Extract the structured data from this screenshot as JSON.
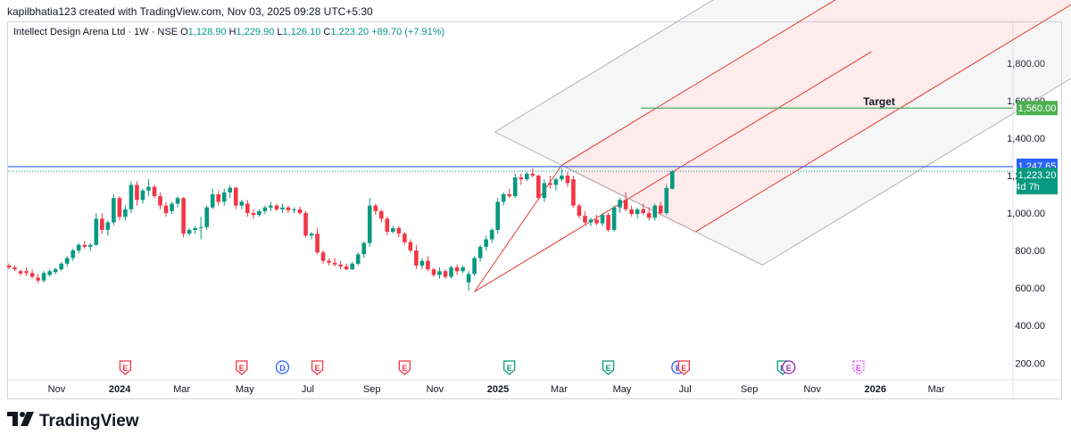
{
  "header": {
    "text": "kapilbhatia123 created with TradingView.com, Nov 03, 2025 09:28 UTC+5:30"
  },
  "legend": {
    "symbol": "Intellect Design Arena Ltd · 1W · NSE",
    "open_label": "O",
    "open": "1,128.90",
    "high_label": "H",
    "high": "1,229.90",
    "low_label": "L",
    "low": "1,126.10",
    "close_label": "C",
    "close": "1,223.20",
    "change": "+89.70 (+7.91%)"
  },
  "brand": {
    "name": "TradingView"
  },
  "colors": {
    "up": "#089981",
    "down": "#f23645",
    "hline": "#2962ff",
    "target": "#4caf50",
    "pitchfork": "#e53935",
    "outer": "#b2b5be"
  },
  "chart_data": {
    "type": "candlestick",
    "symbol": "Intellect Design Arena Ltd",
    "interval": "1W",
    "exchange": "NSE",
    "y_ticks": [
      200,
      400,
      600,
      800,
      1000,
      1200,
      1400,
      1600,
      1800
    ],
    "y_tick_labels": [
      "200.00",
      "400.00",
      "600.00",
      "800.00",
      "1,000.00",
      "1,200.00",
      "1,400.00",
      "1,600.00",
      "1,800.00"
    ],
    "ylim": [
      130,
      1970
    ],
    "x_labels": [
      "Nov",
      "2024",
      "Mar",
      "May",
      "Jul",
      "Sep",
      "Nov",
      "2025",
      "Mar",
      "May",
      "Jul",
      "Sep",
      "Nov",
      "2026",
      "Mar"
    ],
    "x_label_dates": [
      "2023-11-01",
      "2024-01-01",
      "2024-03-01",
      "2024-05-01",
      "2024-07-01",
      "2024-09-01",
      "2024-11-01",
      "2025-01-01",
      "2025-03-01",
      "2025-05-01",
      "2025-07-01",
      "2025-09-01",
      "2025-11-01",
      "2026-01-01",
      "2026-03-01"
    ],
    "xlim": [
      "2023-09-15",
      "2026-05-15"
    ],
    "candles": [
      {
        "o": 720,
        "h": 730,
        "l": 700,
        "c": 710
      },
      {
        "o": 710,
        "h": 720,
        "l": 690,
        "c": 700
      },
      {
        "o": 690,
        "h": 700,
        "l": 665,
        "c": 678
      },
      {
        "o": 690,
        "h": 710,
        "l": 665,
        "c": 680
      },
      {
        "o": 680,
        "h": 700,
        "l": 650,
        "c": 660
      },
      {
        "o": 655,
        "h": 675,
        "l": 625,
        "c": 640
      },
      {
        "o": 640,
        "h": 690,
        "l": 630,
        "c": 680
      },
      {
        "o": 670,
        "h": 700,
        "l": 660,
        "c": 690
      },
      {
        "o": 685,
        "h": 710,
        "l": 672,
        "c": 700
      },
      {
        "o": 700,
        "h": 740,
        "l": 690,
        "c": 730
      },
      {
        "o": 730,
        "h": 770,
        "l": 715,
        "c": 760
      },
      {
        "o": 760,
        "h": 810,
        "l": 745,
        "c": 800
      },
      {
        "o": 800,
        "h": 840,
        "l": 785,
        "c": 830
      },
      {
        "o": 830,
        "h": 850,
        "l": 810,
        "c": 820
      },
      {
        "o": 820,
        "h": 840,
        "l": 800,
        "c": 830
      },
      {
        "o": 830,
        "h": 1000,
        "l": 825,
        "c": 970
      },
      {
        "o": 970,
        "h": 1000,
        "l": 890,
        "c": 910
      },
      {
        "o": 910,
        "h": 960,
        "l": 880,
        "c": 950
      },
      {
        "o": 950,
        "h": 1100,
        "l": 935,
        "c": 1080
      },
      {
        "o": 1080,
        "h": 1090,
        "l": 960,
        "c": 980
      },
      {
        "o": 980,
        "h": 1040,
        "l": 960,
        "c": 1020
      },
      {
        "o": 1020,
        "h": 1170,
        "l": 1000,
        "c": 1150
      },
      {
        "o": 1150,
        "h": 1170,
        "l": 1040,
        "c": 1070
      },
      {
        "o": 1070,
        "h": 1130,
        "l": 1050,
        "c": 1120
      },
      {
        "o": 1120,
        "h": 1180,
        "l": 1090,
        "c": 1140
      },
      {
        "o": 1140,
        "h": 1150,
        "l": 1080,
        "c": 1090
      },
      {
        "o": 1090,
        "h": 1110,
        "l": 1020,
        "c": 1040
      },
      {
        "o": 1040,
        "h": 1060,
        "l": 980,
        "c": 1000
      },
      {
        "o": 1010,
        "h": 1060,
        "l": 995,
        "c": 1050
      },
      {
        "o": 1050,
        "h": 1090,
        "l": 1030,
        "c": 1080
      },
      {
        "o": 1080,
        "h": 1085,
        "l": 870,
        "c": 890
      },
      {
        "o": 890,
        "h": 920,
        "l": 880,
        "c": 910
      },
      {
        "o": 910,
        "h": 930,
        "l": 890,
        "c": 920
      },
      {
        "o": 920,
        "h": 980,
        "l": 860,
        "c": 925
      },
      {
        "o": 925,
        "h": 1040,
        "l": 910,
        "c": 1030
      },
      {
        "o": 1030,
        "h": 1130,
        "l": 1020,
        "c": 1100
      },
      {
        "o": 1100,
        "h": 1120,
        "l": 1040,
        "c": 1060
      },
      {
        "o": 1060,
        "h": 1130,
        "l": 1040,
        "c": 1110
      },
      {
        "o": 1110,
        "h": 1150,
        "l": 1080,
        "c": 1135
      },
      {
        "o": 1135,
        "h": 1140,
        "l": 1020,
        "c": 1040
      },
      {
        "o": 1040,
        "h": 1070,
        "l": 1020,
        "c": 1060
      },
      {
        "o": 1050,
        "h": 1070,
        "l": 980,
        "c": 1000
      },
      {
        "o": 1000,
        "h": 1020,
        "l": 970,
        "c": 990
      },
      {
        "o": 990,
        "h": 1020,
        "l": 980,
        "c": 1010
      },
      {
        "o": 1010,
        "h": 1040,
        "l": 995,
        "c": 1030
      },
      {
        "o": 1030,
        "h": 1060,
        "l": 1010,
        "c": 1040
      },
      {
        "o": 1040,
        "h": 1050,
        "l": 1010,
        "c": 1020
      },
      {
        "o": 1020,
        "h": 1050,
        "l": 1000,
        "c": 1030
      },
      {
        "o": 1030,
        "h": 1040,
        "l": 1000,
        "c": 1015
      },
      {
        "o": 1015,
        "h": 1030,
        "l": 1000,
        "c": 1020
      },
      {
        "o": 1020,
        "h": 1035,
        "l": 990,
        "c": 1000
      },
      {
        "o": 1000,
        "h": 1010,
        "l": 870,
        "c": 880
      },
      {
        "o": 880,
        "h": 900,
        "l": 860,
        "c": 890
      },
      {
        "o": 890,
        "h": 920,
        "l": 780,
        "c": 790
      },
      {
        "o": 790,
        "h": 800,
        "l": 730,
        "c": 745
      },
      {
        "o": 745,
        "h": 760,
        "l": 720,
        "c": 735
      },
      {
        "o": 735,
        "h": 760,
        "l": 715,
        "c": 725
      },
      {
        "o": 725,
        "h": 745,
        "l": 700,
        "c": 715
      },
      {
        "o": 715,
        "h": 730,
        "l": 695,
        "c": 700
      },
      {
        "o": 700,
        "h": 740,
        "l": 695,
        "c": 730
      },
      {
        "o": 730,
        "h": 790,
        "l": 720,
        "c": 780
      },
      {
        "o": 780,
        "h": 850,
        "l": 760,
        "c": 840
      },
      {
        "o": 840,
        "h": 1080,
        "l": 820,
        "c": 1040
      },
      {
        "o": 1040,
        "h": 1050,
        "l": 990,
        "c": 1010
      },
      {
        "o": 1010,
        "h": 1020,
        "l": 950,
        "c": 970
      },
      {
        "o": 970,
        "h": 980,
        "l": 880,
        "c": 900
      },
      {
        "o": 900,
        "h": 930,
        "l": 890,
        "c": 920
      },
      {
        "o": 920,
        "h": 930,
        "l": 870,
        "c": 890
      },
      {
        "o": 890,
        "h": 900,
        "l": 830,
        "c": 845
      },
      {
        "o": 845,
        "h": 860,
        "l": 790,
        "c": 800
      },
      {
        "o": 800,
        "h": 830,
        "l": 700,
        "c": 720
      },
      {
        "o": 720,
        "h": 760,
        "l": 700,
        "c": 745
      },
      {
        "o": 745,
        "h": 770,
        "l": 690,
        "c": 700
      },
      {
        "o": 700,
        "h": 710,
        "l": 660,
        "c": 670
      },
      {
        "o": 670,
        "h": 710,
        "l": 650,
        "c": 690
      },
      {
        "o": 690,
        "h": 700,
        "l": 650,
        "c": 660
      },
      {
        "o": 660,
        "h": 720,
        "l": 650,
        "c": 710
      },
      {
        "o": 710,
        "h": 725,
        "l": 670,
        "c": 690
      },
      {
        "o": 690,
        "h": 720,
        "l": 680,
        "c": 710
      },
      {
        "o": 630,
        "h": 690,
        "l": 585,
        "c": 675
      },
      {
        "o": 675,
        "h": 770,
        "l": 665,
        "c": 760
      },
      {
        "o": 760,
        "h": 830,
        "l": 740,
        "c": 820
      },
      {
        "o": 820,
        "h": 880,
        "l": 800,
        "c": 860
      },
      {
        "o": 860,
        "h": 920,
        "l": 840,
        "c": 910
      },
      {
        "o": 910,
        "h": 1080,
        "l": 890,
        "c": 1060
      },
      {
        "o": 1060,
        "h": 1110,
        "l": 1040,
        "c": 1100
      },
      {
        "o": 1100,
        "h": 1130,
        "l": 1080,
        "c": 1090
      },
      {
        "o": 1090,
        "h": 1210,
        "l": 1080,
        "c": 1190
      },
      {
        "o": 1190,
        "h": 1210,
        "l": 1150,
        "c": 1180
      },
      {
        "o": 1180,
        "h": 1220,
        "l": 1170,
        "c": 1210
      },
      {
        "o": 1210,
        "h": 1240,
        "l": 1190,
        "c": 1200
      },
      {
        "o": 1200,
        "h": 1205,
        "l": 1070,
        "c": 1080
      },
      {
        "o": 1080,
        "h": 1180,
        "l": 1060,
        "c": 1160
      },
      {
        "o": 1160,
        "h": 1200,
        "l": 1130,
        "c": 1150
      },
      {
        "o": 1150,
        "h": 1190,
        "l": 1120,
        "c": 1180
      },
      {
        "o": 1180,
        "h": 1240,
        "l": 1170,
        "c": 1200
      },
      {
        "o": 1200,
        "h": 1220,
        "l": 1140,
        "c": 1160
      },
      {
        "o": 1180,
        "h": 1200,
        "l": 1030,
        "c": 1040
      },
      {
        "o": 1040,
        "h": 1050,
        "l": 970,
        "c": 985
      },
      {
        "o": 985,
        "h": 1010,
        "l": 940,
        "c": 950
      },
      {
        "o": 950,
        "h": 975,
        "l": 930,
        "c": 965
      },
      {
        "o": 965,
        "h": 990,
        "l": 935,
        "c": 945
      },
      {
        "o": 945,
        "h": 1000,
        "l": 930,
        "c": 990
      },
      {
        "o": 990,
        "h": 1000,
        "l": 900,
        "c": 910
      },
      {
        "o": 910,
        "h": 1040,
        "l": 900,
        "c": 1030
      },
      {
        "o": 1030,
        "h": 1080,
        "l": 1000,
        "c": 1070
      },
      {
        "o": 1070,
        "h": 1110,
        "l": 1010,
        "c": 1020
      },
      {
        "o": 1020,
        "h": 1040,
        "l": 980,
        "c": 995
      },
      {
        "o": 995,
        "h": 1030,
        "l": 970,
        "c": 1020
      },
      {
        "o": 1020,
        "h": 1050,
        "l": 990,
        "c": 1000
      },
      {
        "o": 1000,
        "h": 1030,
        "l": 960,
        "c": 975
      },
      {
        "o": 975,
        "h": 1050,
        "l": 960,
        "c": 1040
      },
      {
        "o": 1040,
        "h": 1060,
        "l": 990,
        "c": 1000
      },
      {
        "o": 1000,
        "h": 1150,
        "l": 990,
        "c": 1134
      },
      {
        "o": 1128.9,
        "h": 1229.9,
        "l": 1126.1,
        "c": 1223.2
      }
    ],
    "horizontal_line": {
      "value": 1247.65,
      "label": "1,247.65"
    },
    "last_price": {
      "value": 1223.2,
      "label": "1,223.20",
      "countdown": "4d 7h"
    },
    "target": {
      "value": 1560,
      "label": "1,560.00",
      "text": "Target"
    },
    "pitchfork": {
      "anchors": [
        [
          80,
          580
        ],
        [
          95,
          1255
        ],
        [
          118,
          900
        ]
      ]
    },
    "event_markers": [
      {
        "bar": 20,
        "letter": "E",
        "kind": "earnings-miss"
      },
      {
        "bar": 40,
        "letter": "E",
        "kind": "earnings-miss"
      },
      {
        "bar": 47,
        "letter": "D",
        "kind": "dividend"
      },
      {
        "bar": 53,
        "letter": "E",
        "kind": "earnings-miss"
      },
      {
        "bar": 68,
        "letter": "E",
        "kind": "earnings-miss"
      },
      {
        "bar": 86,
        "letter": "E",
        "kind": "earnings-beat"
      },
      {
        "bar": 103,
        "letter": "E",
        "kind": "earnings-beat"
      },
      {
        "bar": 115,
        "letter": "E",
        "kind": "dividend"
      },
      {
        "bar": 116,
        "letter": "E",
        "kind": "earnings-miss"
      },
      {
        "bar": 133,
        "letter": "E",
        "kind": "earnings-beat"
      },
      {
        "bar": 134,
        "letter": "E",
        "kind": "split"
      },
      {
        "bar": 146,
        "letter": "E",
        "kind": "upcoming"
      }
    ]
  }
}
